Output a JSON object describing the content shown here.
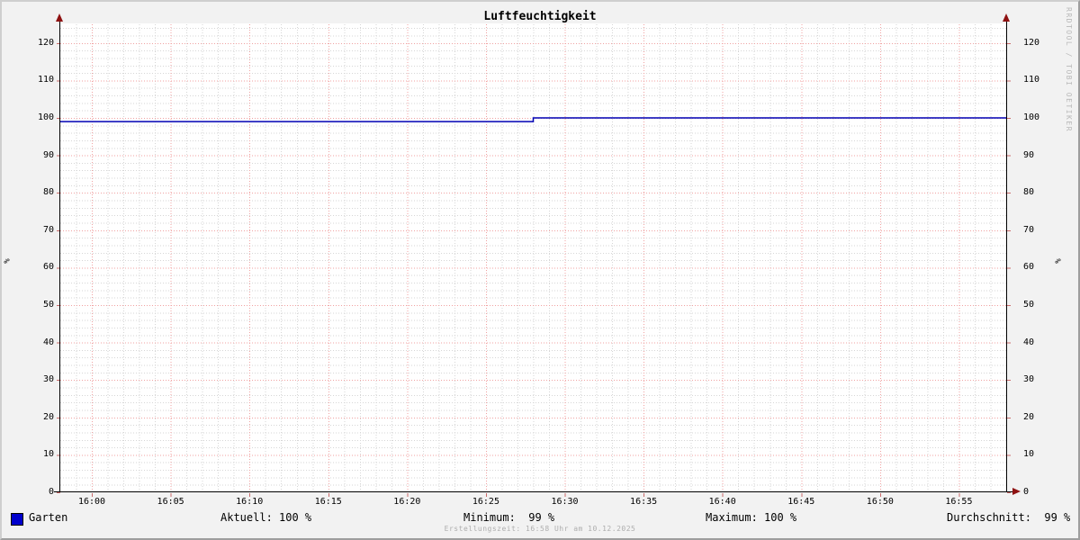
{
  "title": "Luftfeuchtigkeit",
  "watermark": "RRDTOOL / TOBI OETIKER",
  "axes": {
    "unit": "%",
    "y_ticks": [
      0,
      10,
      20,
      30,
      40,
      50,
      60,
      70,
      80,
      90,
      100,
      110,
      120
    ],
    "x_ticks": [
      "16:00",
      "16:05",
      "16:10",
      "16:15",
      "16:20",
      "16:25",
      "16:30",
      "16:35",
      "16:40",
      "16:45",
      "16:50",
      "16:55"
    ]
  },
  "legend": {
    "series_label": "Garten",
    "aktuell": "Aktuell: 100 %",
    "minimum": "Minimum:  99 %",
    "maximum": "Maximum: 100 %",
    "durchschnitt": "Durchschnitt:  99 %"
  },
  "footer": "Erstellungszeit: 16:58 Uhr am 10.12.2025",
  "colors": {
    "line": "#0000b4",
    "swatch": "#0000cc",
    "grid_major": "#f0a2a2",
    "grid_minor": "#d6d6d6",
    "tick": "#c96a6a",
    "arrow": "#8e1111"
  },
  "chart_data": {
    "type": "line",
    "title": "Luftfeuchtigkeit",
    "xlabel": "",
    "ylabel": "%",
    "x_start": "15:58",
    "x_end": "16:58",
    "ylim": [
      0,
      125
    ],
    "y_tick_step": 10,
    "y_minor_step": 2,
    "x_major_minutes": 5,
    "x_minor_minutes": 1,
    "grid": "on",
    "legend_position": "bottom",
    "series": [
      {
        "name": "Garten",
        "color": "#0000b4",
        "points": [
          [
            "15:58",
            99
          ],
          [
            "16:28",
            99
          ],
          [
            "16:28",
            100
          ],
          [
            "16:58",
            100
          ]
        ]
      }
    ],
    "stats": {
      "aktuell": 100,
      "minimum": 99,
      "maximum": 100,
      "durchschnitt": 99,
      "unit": "%"
    }
  }
}
